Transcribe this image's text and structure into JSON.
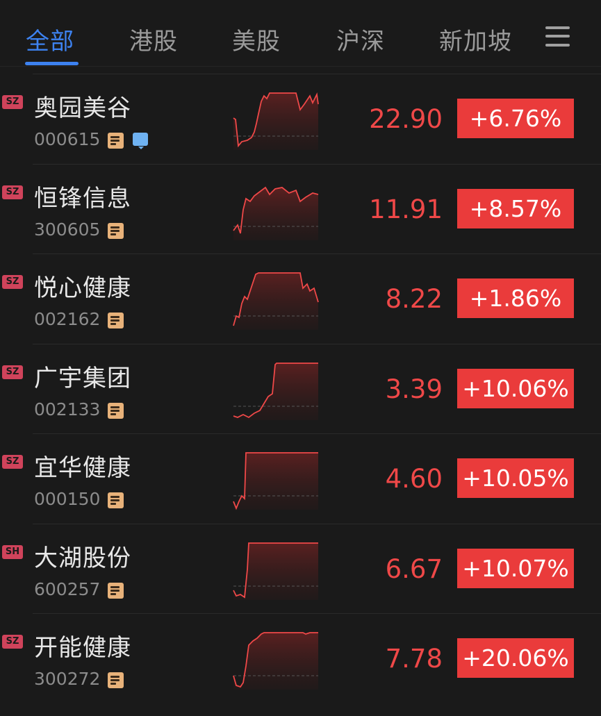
{
  "tabs": [
    {
      "label": "全部",
      "active": true
    },
    {
      "label": "港股"
    },
    {
      "label": "美股"
    },
    {
      "label": "沪深"
    },
    {
      "label": "新加坡"
    }
  ],
  "menu_icon": "hamburger-menu-icon",
  "colors": {
    "accent": "#3d82f0",
    "up": "#ea3b3b",
    "sz_badge": "#d0435b"
  },
  "stocks": [
    {
      "market": "SZ",
      "name": "奥园美谷",
      "code": "000615",
      "price": "22.90",
      "change": "+6.76%",
      "has_comment": true
    },
    {
      "market": "SZ",
      "name": "恒锋信息",
      "code": "300605",
      "price": "11.91",
      "change": "+8.57%"
    },
    {
      "market": "SZ",
      "name": "悦心健康",
      "code": "002162",
      "price": "8.22",
      "change": "+1.86%"
    },
    {
      "market": "SZ",
      "name": "广宇集团",
      "code": "002133",
      "price": "3.39",
      "change": "+10.06%"
    },
    {
      "market": "SZ",
      "name": "宜华健康",
      "code": "000150",
      "price": "4.60",
      "change": "+10.05%"
    },
    {
      "market": "SH",
      "name": "大湖股份",
      "code": "600257",
      "price": "6.67",
      "change": "+10.07%"
    },
    {
      "market": "SZ",
      "name": "开能健康",
      "code": "300272",
      "price": "7.78",
      "change": "+20.06%"
    }
  ]
}
